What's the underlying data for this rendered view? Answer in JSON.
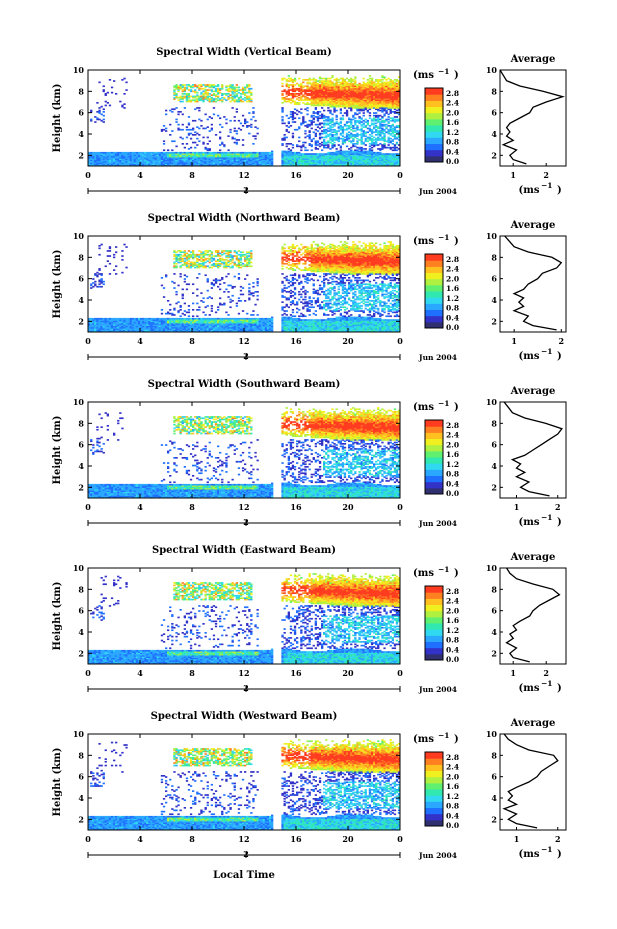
{
  "figure": {
    "xlabel": "Local Time",
    "date_label": "Jun 2004",
    "ylabel": "Height (km)",
    "avg_title": "Average",
    "unit_label": "(ms",
    "unit_exp": "−1",
    "colorbar": {
      "ticks": [
        "2.8",
        "2.4",
        "2.0",
        "1.6",
        "1.2",
        "0.8",
        "0.4",
        "0.0"
      ],
      "colors": [
        "#303070",
        "#3232c8",
        "#2070ff",
        "#2aa8ff",
        "#30d8f0",
        "#30e8b0",
        "#60f070",
        "#b0f040",
        "#f0f020",
        "#ffc020",
        "#ff8020",
        "#ff3c20"
      ]
    },
    "x_ticks": [
      "0",
      "4",
      "8",
      "12",
      "16",
      "20",
      "0"
    ],
    "day_tick": "2",
    "y_ticks": [
      "2",
      "4",
      "6",
      "8",
      "10"
    ]
  },
  "chart_data": [
    {
      "type": "heatmap",
      "title": "Spectral Width (Vertical Beam)",
      "xlim": [
        0,
        24
      ],
      "ylim": [
        1,
        10
      ],
      "avg_profile": {
        "xticks": [
          "1",
          "2"
        ],
        "xlim": [
          0.6,
          2.6
        ],
        "x": [
          1.4,
          1.0,
          0.9,
          1.1,
          0.7,
          1.0,
          0.8,
          0.9,
          0.8,
          0.9,
          1.2,
          1.5,
          1.6,
          2.0,
          2.5,
          1.9,
          1.2,
          0.8,
          0.7,
          0.6
        ],
        "y": [
          1.2,
          1.6,
          2.0,
          2.5,
          3.0,
          3.4,
          3.8,
          4.2,
          4.6,
          5.0,
          5.5,
          6.0,
          6.5,
          7.0,
          7.5,
          8.0,
          8.5,
          9.0,
          9.5,
          10.0
        ]
      }
    },
    {
      "type": "heatmap",
      "title": "Spectral Width (Northward Beam)",
      "xlim": [
        0,
        24
      ],
      "ylim": [
        1,
        10
      ],
      "avg_profile": {
        "xticks": [
          "1",
          "2"
        ],
        "xlim": [
          0.7,
          2.1
        ],
        "x": [
          1.9,
          1.4,
          1.2,
          1.3,
          1.0,
          1.2,
          1.1,
          1.2,
          1.0,
          1.2,
          1.3,
          1.5,
          1.6,
          1.9,
          2.0,
          1.8,
          1.3,
          1.0,
          0.9,
          0.8
        ],
        "y": [
          1.2,
          1.6,
          2.0,
          2.5,
          3.0,
          3.4,
          3.8,
          4.2,
          4.6,
          5.0,
          5.5,
          6.0,
          6.5,
          7.0,
          7.5,
          8.0,
          8.5,
          9.0,
          9.5,
          10.0
        ]
      }
    },
    {
      "type": "heatmap",
      "title": "Spectral Width (Southward Beam)",
      "xlim": [
        0,
        24
      ],
      "ylim": [
        1,
        10
      ],
      "avg_profile": {
        "xticks": [
          "1",
          "2"
        ],
        "xlim": [
          0.6,
          2.2
        ],
        "x": [
          1.8,
          1.3,
          1.1,
          1.3,
          1.0,
          1.2,
          1.0,
          1.1,
          0.9,
          1.2,
          1.4,
          1.6,
          1.8,
          2.0,
          2.1,
          1.7,
          1.2,
          0.9,
          0.8,
          0.7
        ],
        "y": [
          1.2,
          1.6,
          2.0,
          2.5,
          3.0,
          3.4,
          3.8,
          4.2,
          4.6,
          5.0,
          5.5,
          6.0,
          6.5,
          7.0,
          7.5,
          8.0,
          8.5,
          9.0,
          9.5,
          10.0
        ]
      }
    },
    {
      "type": "heatmap",
      "title": "Spectral Width (Eastward Beam)",
      "xlim": [
        0,
        24
      ],
      "ylim": [
        1,
        10
      ],
      "avg_profile": {
        "xticks": [
          "1",
          "2"
        ],
        "xlim": [
          0.6,
          2.6
        ],
        "x": [
          1.5,
          1.0,
          0.9,
          1.1,
          0.8,
          1.0,
          0.9,
          1.1,
          1.0,
          1.2,
          1.5,
          1.6,
          1.8,
          2.1,
          2.4,
          2.2,
          1.6,
          1.1,
          0.9,
          0.8
        ],
        "y": [
          1.2,
          1.6,
          2.0,
          2.5,
          3.0,
          3.4,
          3.8,
          4.2,
          4.6,
          5.0,
          5.5,
          6.0,
          6.5,
          7.0,
          7.5,
          8.0,
          8.5,
          9.0,
          9.5,
          10.0
        ]
      }
    },
    {
      "type": "heatmap",
      "title": "Spectral Width (Westward Beam)",
      "xlim": [
        0,
        24
      ],
      "ylim": [
        1,
        10
      ],
      "avg_profile": {
        "xticks": [
          "1",
          "2"
        ],
        "xlim": [
          0.6,
          2.2
        ],
        "x": [
          1.5,
          1.0,
          0.8,
          1.0,
          0.7,
          1.0,
          0.8,
          0.9,
          0.8,
          1.0,
          1.3,
          1.5,
          1.6,
          1.8,
          2.0,
          1.9,
          1.3,
          1.0,
          0.8,
          0.7
        ],
        "y": [
          1.2,
          1.6,
          2.0,
          2.5,
          3.0,
          3.4,
          3.8,
          4.2,
          4.6,
          5.0,
          5.5,
          6.0,
          6.5,
          7.0,
          7.5,
          8.0,
          8.5,
          9.0,
          9.5,
          10.0
        ]
      }
    }
  ]
}
